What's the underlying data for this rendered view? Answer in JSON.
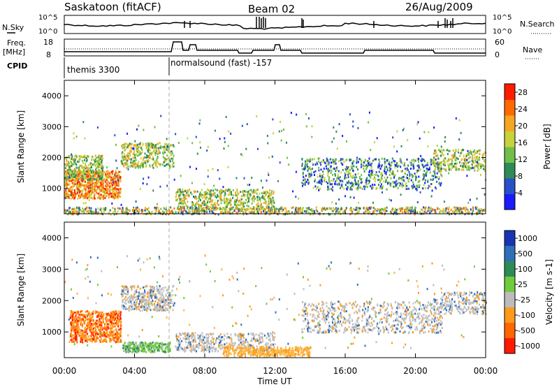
{
  "header": {
    "title": "Saskatoon (fitACF)",
    "beam": "Beam 02",
    "date": "26/Aug/2009"
  },
  "top_panels": {
    "nsky_label": "N.Sky",
    "nsky_ticks": [
      "10^5",
      "10^0"
    ],
    "nsearch_label": "N.Search",
    "nsearch_ticks": [
      "10^5",
      "10^0"
    ],
    "freq_label_1": "Freq.",
    "freq_label_2": "[MHz]",
    "freq_ticks": [
      "18",
      "8"
    ],
    "nave_label": "Nave",
    "nave_ticks": [
      "60",
      "0"
    ],
    "cpid_label": "CPID",
    "cpid_segments": [
      {
        "label": "themis 3300",
        "start_hour": 0
      },
      {
        "label": "normalsound (fast) -157",
        "start_hour": 6
      }
    ]
  },
  "chart_data": [
    {
      "type": "heatmap",
      "title": "Power",
      "ylabel": "Slant Range [km]",
      "xlabel": "Time UT",
      "xlim": [
        0,
        24
      ],
      "ylim": [
        180,
        4500
      ],
      "yticks": [
        "1000",
        "2000",
        "3000",
        "4000"
      ],
      "colorbar": {
        "label": "Power [dB]",
        "ticks": [
          "4",
          "8",
          "12",
          "16",
          "20",
          "24",
          "28"
        ],
        "range": [
          0,
          30
        ],
        "colors": [
          "#1a1aff",
          "#2850c8",
          "#2e8b57",
          "#6fbf4a",
          "#c8d23c",
          "#f5a623",
          "#ff6a00",
          "#ff1a00"
        ]
      },
      "features_km_by_hour": [
        {
          "t0": 0.0,
          "t1": 3.0,
          "r0": 700,
          "r1": 1800,
          "level": "high"
        },
        {
          "t0": 3.3,
          "t1": 6.0,
          "r0": 1700,
          "r1": 2500,
          "level": "medium"
        },
        {
          "t0": 6.5,
          "t1": 12.0,
          "r0": 300,
          "r1": 1000,
          "level": "medium"
        },
        {
          "t0": 13.5,
          "t1": 21.0,
          "r0": 1000,
          "r1": 2000,
          "level": "medium"
        },
        {
          "t0": 21.0,
          "t1": 24.0,
          "r0": 1600,
          "r1": 2300,
          "level": "medium"
        }
      ]
    },
    {
      "type": "heatmap",
      "title": "Velocity",
      "ylabel": "Slant Range [km]",
      "xlabel": "Time UT",
      "xlim": [
        0,
        24
      ],
      "ylim": [
        180,
        4500
      ],
      "yticks": [
        "1000",
        "2000",
        "3000",
        "4000"
      ],
      "colorbar": {
        "label": "Velocity [m s-1]",
        "ticks": [
          "1000",
          "500",
          "100",
          "25",
          "-25",
          "-100",
          "-500",
          "-1000"
        ],
        "colors": [
          "#1a33b3",
          "#2e6fb8",
          "#2e8b57",
          "#6fcc3a",
          "#bcbcbc",
          "#ff9a1a",
          "#ff6600",
          "#ff1a00"
        ]
      }
    }
  ],
  "xaxis": {
    "ticks": [
      "00:00",
      "04:00",
      "08:00",
      "12:00",
      "16:00",
      "20:00",
      "00:00"
    ],
    "label": "Time UT"
  }
}
